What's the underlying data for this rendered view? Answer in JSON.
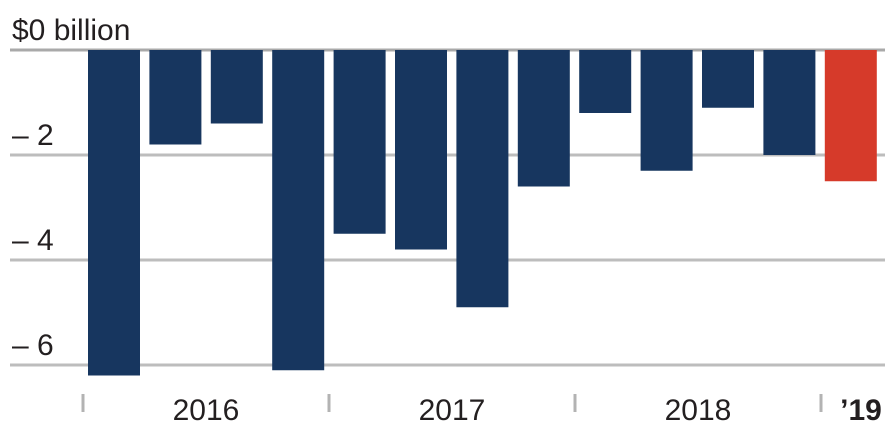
{
  "chart_data": {
    "type": "bar",
    "title": "",
    "xlabel": "",
    "ylabel": "",
    "unit_label": "$0 billion",
    "ylim": [
      -6.3,
      0
    ],
    "y_ticks": [
      {
        "value": 0,
        "label": "$0 billion"
      },
      {
        "value": -2,
        "label": "– 2"
      },
      {
        "value": -4,
        "label": "– 4"
      },
      {
        "value": -6,
        "label": "– 6"
      }
    ],
    "year_groups": [
      "2016",
      "2017",
      "2018",
      "’19"
    ],
    "categories": [
      "2016 Q1",
      "2016 Q2",
      "2016 Q3",
      "2016 Q4",
      "2017 Q1",
      "2017 Q2",
      "2017 Q3",
      "2017 Q4",
      "2018 Q1",
      "2018 Q2",
      "2018 Q3",
      "2018 Q4",
      "2019 Q1"
    ],
    "values": [
      -6.2,
      -1.8,
      -1.4,
      -6.1,
      -3.5,
      -3.8,
      -4.9,
      -2.6,
      -1.2,
      -2.3,
      -1.1,
      -2.0,
      -2.5
    ],
    "grid": true,
    "colors": {
      "bar": "#17365f",
      "highlight": "#d63a2a",
      "grid": "#bdbdbd",
      "text": "#231f20"
    },
    "highlight_index": 12
  }
}
